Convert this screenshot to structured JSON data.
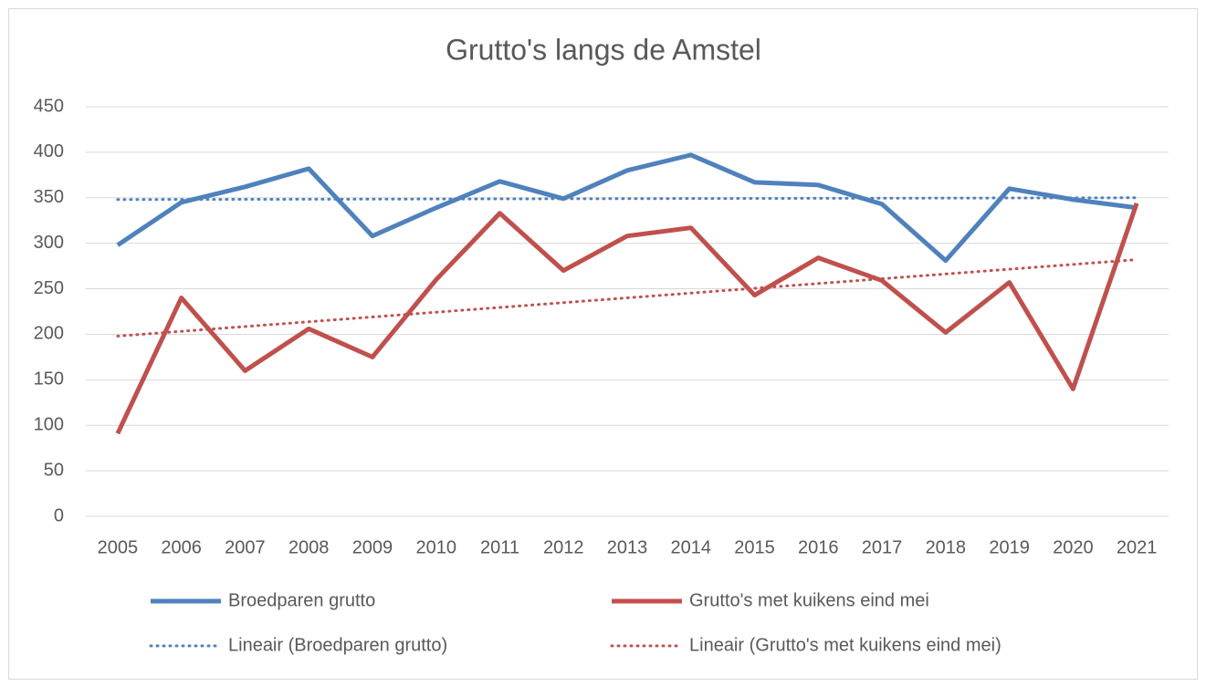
{
  "chart_data": {
    "type": "line",
    "title": "Grutto's langs de Amstel",
    "categories": [
      "2005",
      "2006",
      "2007",
      "2008",
      "2009",
      "2010",
      "2011",
      "2012",
      "2013",
      "2014",
      "2015",
      "2016",
      "2017",
      "2018",
      "2019",
      "2020",
      "2021"
    ],
    "series": [
      {
        "name": "Broedparen grutto",
        "color": "#4f81bd",
        "dashed": false,
        "values": [
          298,
          345,
          362,
          382,
          308,
          339,
          368,
          349,
          380,
          397,
          367,
          364,
          343,
          281,
          360,
          348,
          339
        ]
      },
      {
        "name": "Grutto's met kuikens eind mei",
        "color": "#c0504d",
        "dashed": false,
        "values": [
          91,
          240,
          160,
          206,
          175,
          260,
          333,
          270,
          308,
          317,
          243,
          284,
          259,
          202,
          257,
          140,
          344
        ]
      },
      {
        "name": "Lineair (Broedparen grutto)",
        "color": "#4f81bd",
        "dashed": true,
        "values": [
          348,
          348.125,
          348.25,
          348.375,
          348.5,
          348.625,
          348.75,
          348.875,
          349,
          349.125,
          349.25,
          349.375,
          349.5,
          349.625,
          349.75,
          349.875,
          350
        ]
      },
      {
        "name": "Lineair (Grutto's met kuikens eind mei)",
        "color": "#c0504d",
        "dashed": true,
        "values": [
          198,
          203.25,
          208.5,
          213.75,
          219,
          224.25,
          229.5,
          234.75,
          240,
          245.25,
          250.5,
          255.75,
          261,
          266.25,
          271.5,
          276.75,
          282
        ]
      }
    ],
    "ylim": [
      0,
      450
    ],
    "yticks": [
      0,
      50,
      100,
      150,
      200,
      250,
      300,
      350,
      400,
      450
    ],
    "grid": true
  }
}
